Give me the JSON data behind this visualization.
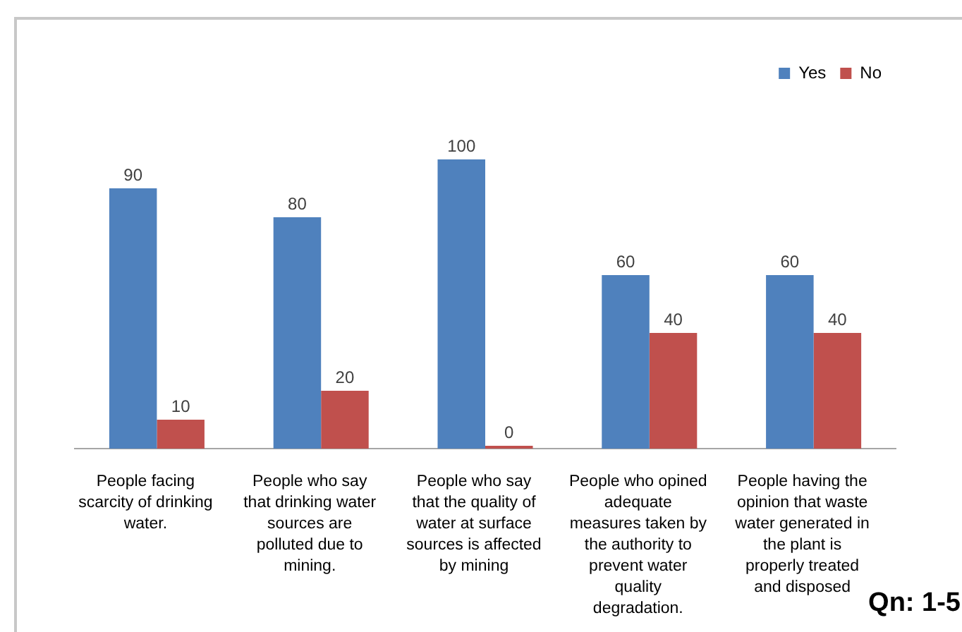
{
  "chart_data": {
    "type": "bar",
    "categories": [
      "People facing scarcity of drinking water.",
      "People who say that drinking water sources are polluted due to mining.",
      "People who say that the quality of water at surface sources is affected by mining",
      "People who opined adequate measures taken by the authority to prevent water quality degradation.",
      "People having the opinion that waste water generated in the plant is properly treated and disposed"
    ],
    "series": [
      {
        "name": "Yes",
        "color": "#4f81bd",
        "values": [
          90,
          80,
          100,
          60,
          60
        ]
      },
      {
        "name": "No",
        "color": "#c0504d",
        "values": [
          10,
          20,
          0,
          40,
          40
        ]
      }
    ],
    "data_labels": true,
    "legend": "top right",
    "grid": false,
    "tick_labels": "x",
    "annotations": [
      "Qn: 1-5"
    ]
  }
}
